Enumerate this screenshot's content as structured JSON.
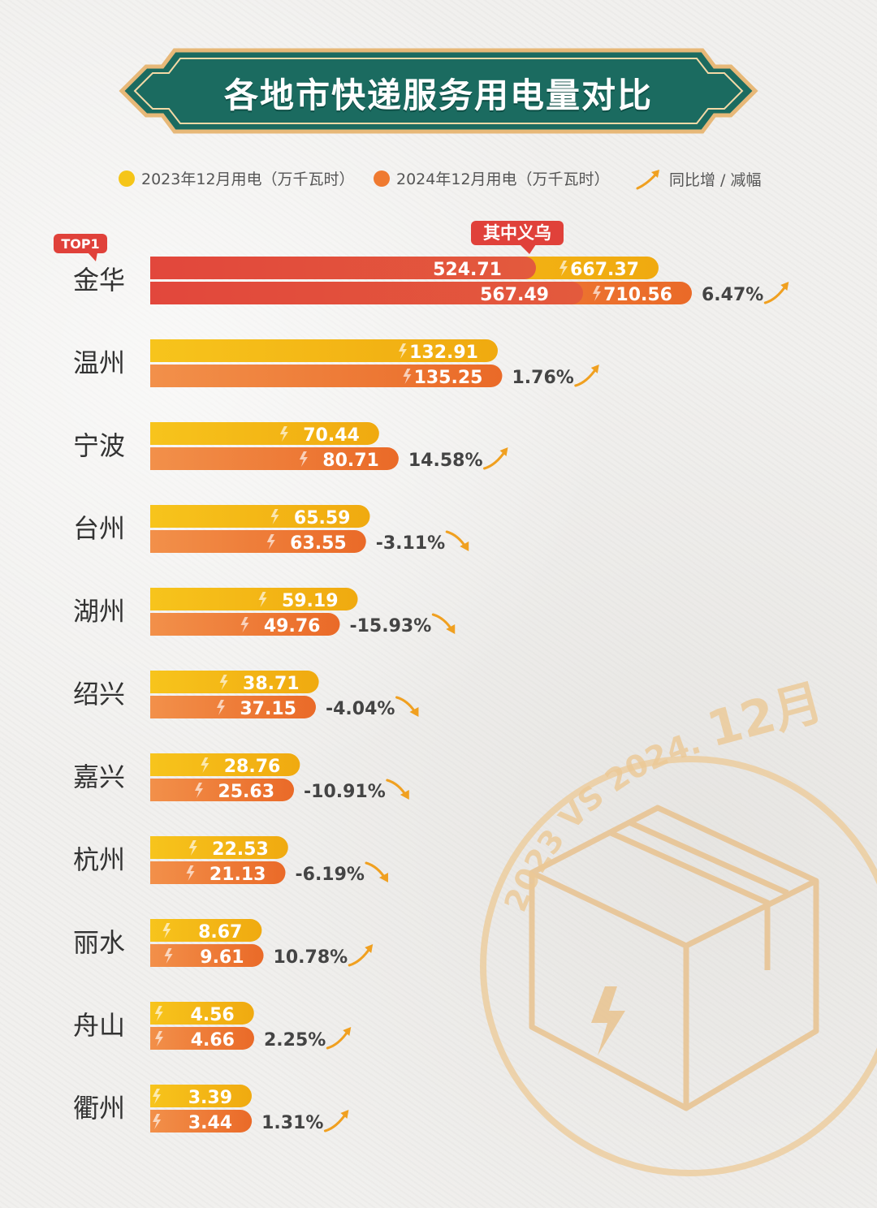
{
  "title": "各地市快递服务用电量对比",
  "legend": {
    "series_2023": "2023年12月用电（万千瓦时）",
    "series_2024": "2024年12月用电（万千瓦时）",
    "change": "同比增 / 减幅"
  },
  "colors": {
    "y2023": "#f5b90f",
    "y2024": "#ef7a30",
    "jinhua": "#e0413a",
    "banner": "#1b6b60",
    "gold": "#e7b878"
  },
  "top_badge": "TOP1",
  "yiwu_tag": "其中义乌",
  "stamp": {
    "arc_text": "2023 VS 2024.",
    "month_text": "12月"
  },
  "chart_data": {
    "type": "bar",
    "orientation": "horizontal",
    "categories": [
      "金华",
      "温州",
      "宁波",
      "台州",
      "湖州",
      "绍兴",
      "嘉兴",
      "杭州",
      "丽水",
      "舟山",
      "衢州"
    ],
    "series": [
      {
        "name": "2023年12月用电（万千瓦时）",
        "values": [
          667.37,
          132.91,
          70.44,
          65.59,
          59.19,
          38.71,
          28.76,
          22.53,
          8.67,
          4.56,
          3.39
        ]
      },
      {
        "name": "2024年12月用电（万千瓦时）",
        "values": [
          710.56,
          135.25,
          80.71,
          63.55,
          49.76,
          37.15,
          25.63,
          21.13,
          9.61,
          4.66,
          3.44
        ]
      }
    ],
    "change": [
      "6.47%",
      "1.76%",
      "14.58%",
      "-3.11%",
      "-15.93%",
      "-4.04%",
      "-10.91%",
      "-6.19%",
      "10.78%",
      "2.25%",
      "1.31%"
    ],
    "yiwu": {
      "label": "其中义乌",
      "y2023": 524.71,
      "y2024": 567.49
    }
  }
}
